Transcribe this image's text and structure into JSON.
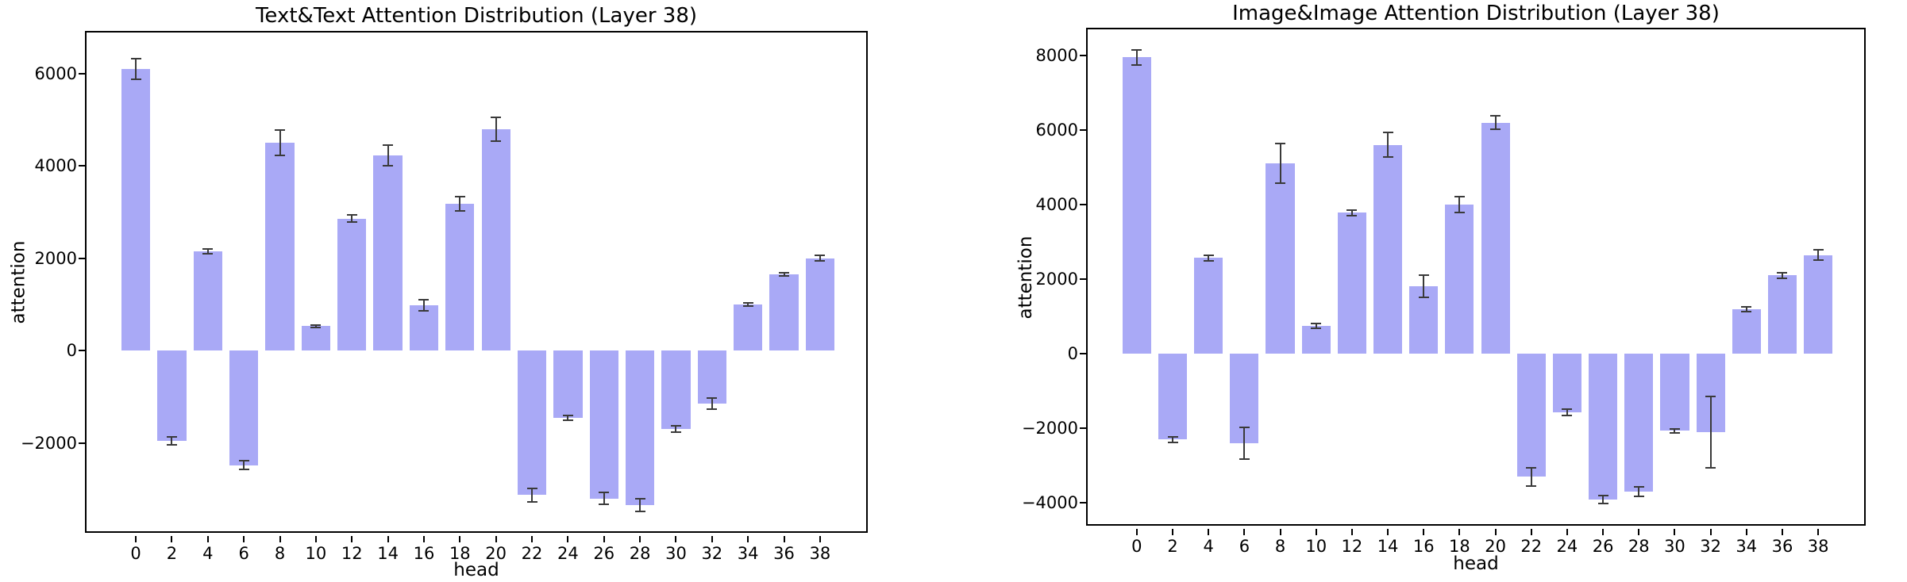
{
  "figure": {
    "background": "#ffffff",
    "bar_color": "#a9a9f6",
    "error_color": "#3a3a3a",
    "axis_color": "#000000"
  },
  "chart_data": [
    {
      "type": "bar",
      "title": "Text&Text Attention Distribution (Layer 38)",
      "xlabel": "head",
      "ylabel": "attention",
      "categories": [
        0,
        2,
        4,
        6,
        8,
        10,
        12,
        14,
        16,
        18,
        20,
        22,
        24,
        26,
        28,
        30,
        32,
        34,
        36,
        38
      ],
      "values": [
        6100,
        -1950,
        2150,
        -2480,
        4500,
        530,
        2860,
        4230,
        980,
        3180,
        4800,
        -3130,
        -1450,
        -3200,
        -3350,
        -1700,
        -1150,
        1000,
        1650,
        2000
      ],
      "errors": [
        230,
        90,
        50,
        90,
        280,
        30,
        80,
        220,
        120,
        150,
        260,
        150,
        50,
        130,
        140,
        70,
        120,
        30,
        40,
        60
      ],
      "ylim": [
        -3980,
        6890
      ],
      "yticks": [
        {
          "value": 6000,
          "label": "6000"
        },
        {
          "value": 4000,
          "label": "4000"
        },
        {
          "value": 2000,
          "label": "2000"
        },
        {
          "value": 0,
          "label": "0"
        },
        {
          "value": -2000,
          "label": "−2000"
        }
      ],
      "grid": false,
      "legend": "none"
    },
    {
      "type": "bar",
      "title": "Image&Image Attention Distribution (Layer 38)",
      "xlabel": "head",
      "ylabel": "attention",
      "categories": [
        0,
        2,
        4,
        6,
        8,
        10,
        12,
        14,
        16,
        18,
        20,
        22,
        24,
        26,
        28,
        30,
        32,
        34,
        36,
        38
      ],
      "values": [
        7950,
        -2300,
        2570,
        -2400,
        5100,
        750,
        3780,
        5600,
        1820,
        4000,
        6200,
        -3300,
        -1570,
        -3900,
        -3700,
        -2060,
        -2100,
        1200,
        2100,
        2650
      ],
      "errors": [
        200,
        80,
        80,
        430,
        530,
        60,
        70,
        330,
        300,
        210,
        180,
        250,
        80,
        110,
        130,
        50,
        950,
        60,
        70,
        130
      ],
      "ylim": [
        -4650,
        8700
      ],
      "yticks": [
        {
          "value": 8000,
          "label": "8000"
        },
        {
          "value": 6000,
          "label": "6000"
        },
        {
          "value": 4000,
          "label": "4000"
        },
        {
          "value": 2000,
          "label": "2000"
        },
        {
          "value": 0,
          "label": "0"
        },
        {
          "value": -2000,
          "label": "−2000"
        },
        {
          "value": -4000,
          "label": "−4000"
        }
      ],
      "grid": false,
      "legend": "none"
    }
  ]
}
